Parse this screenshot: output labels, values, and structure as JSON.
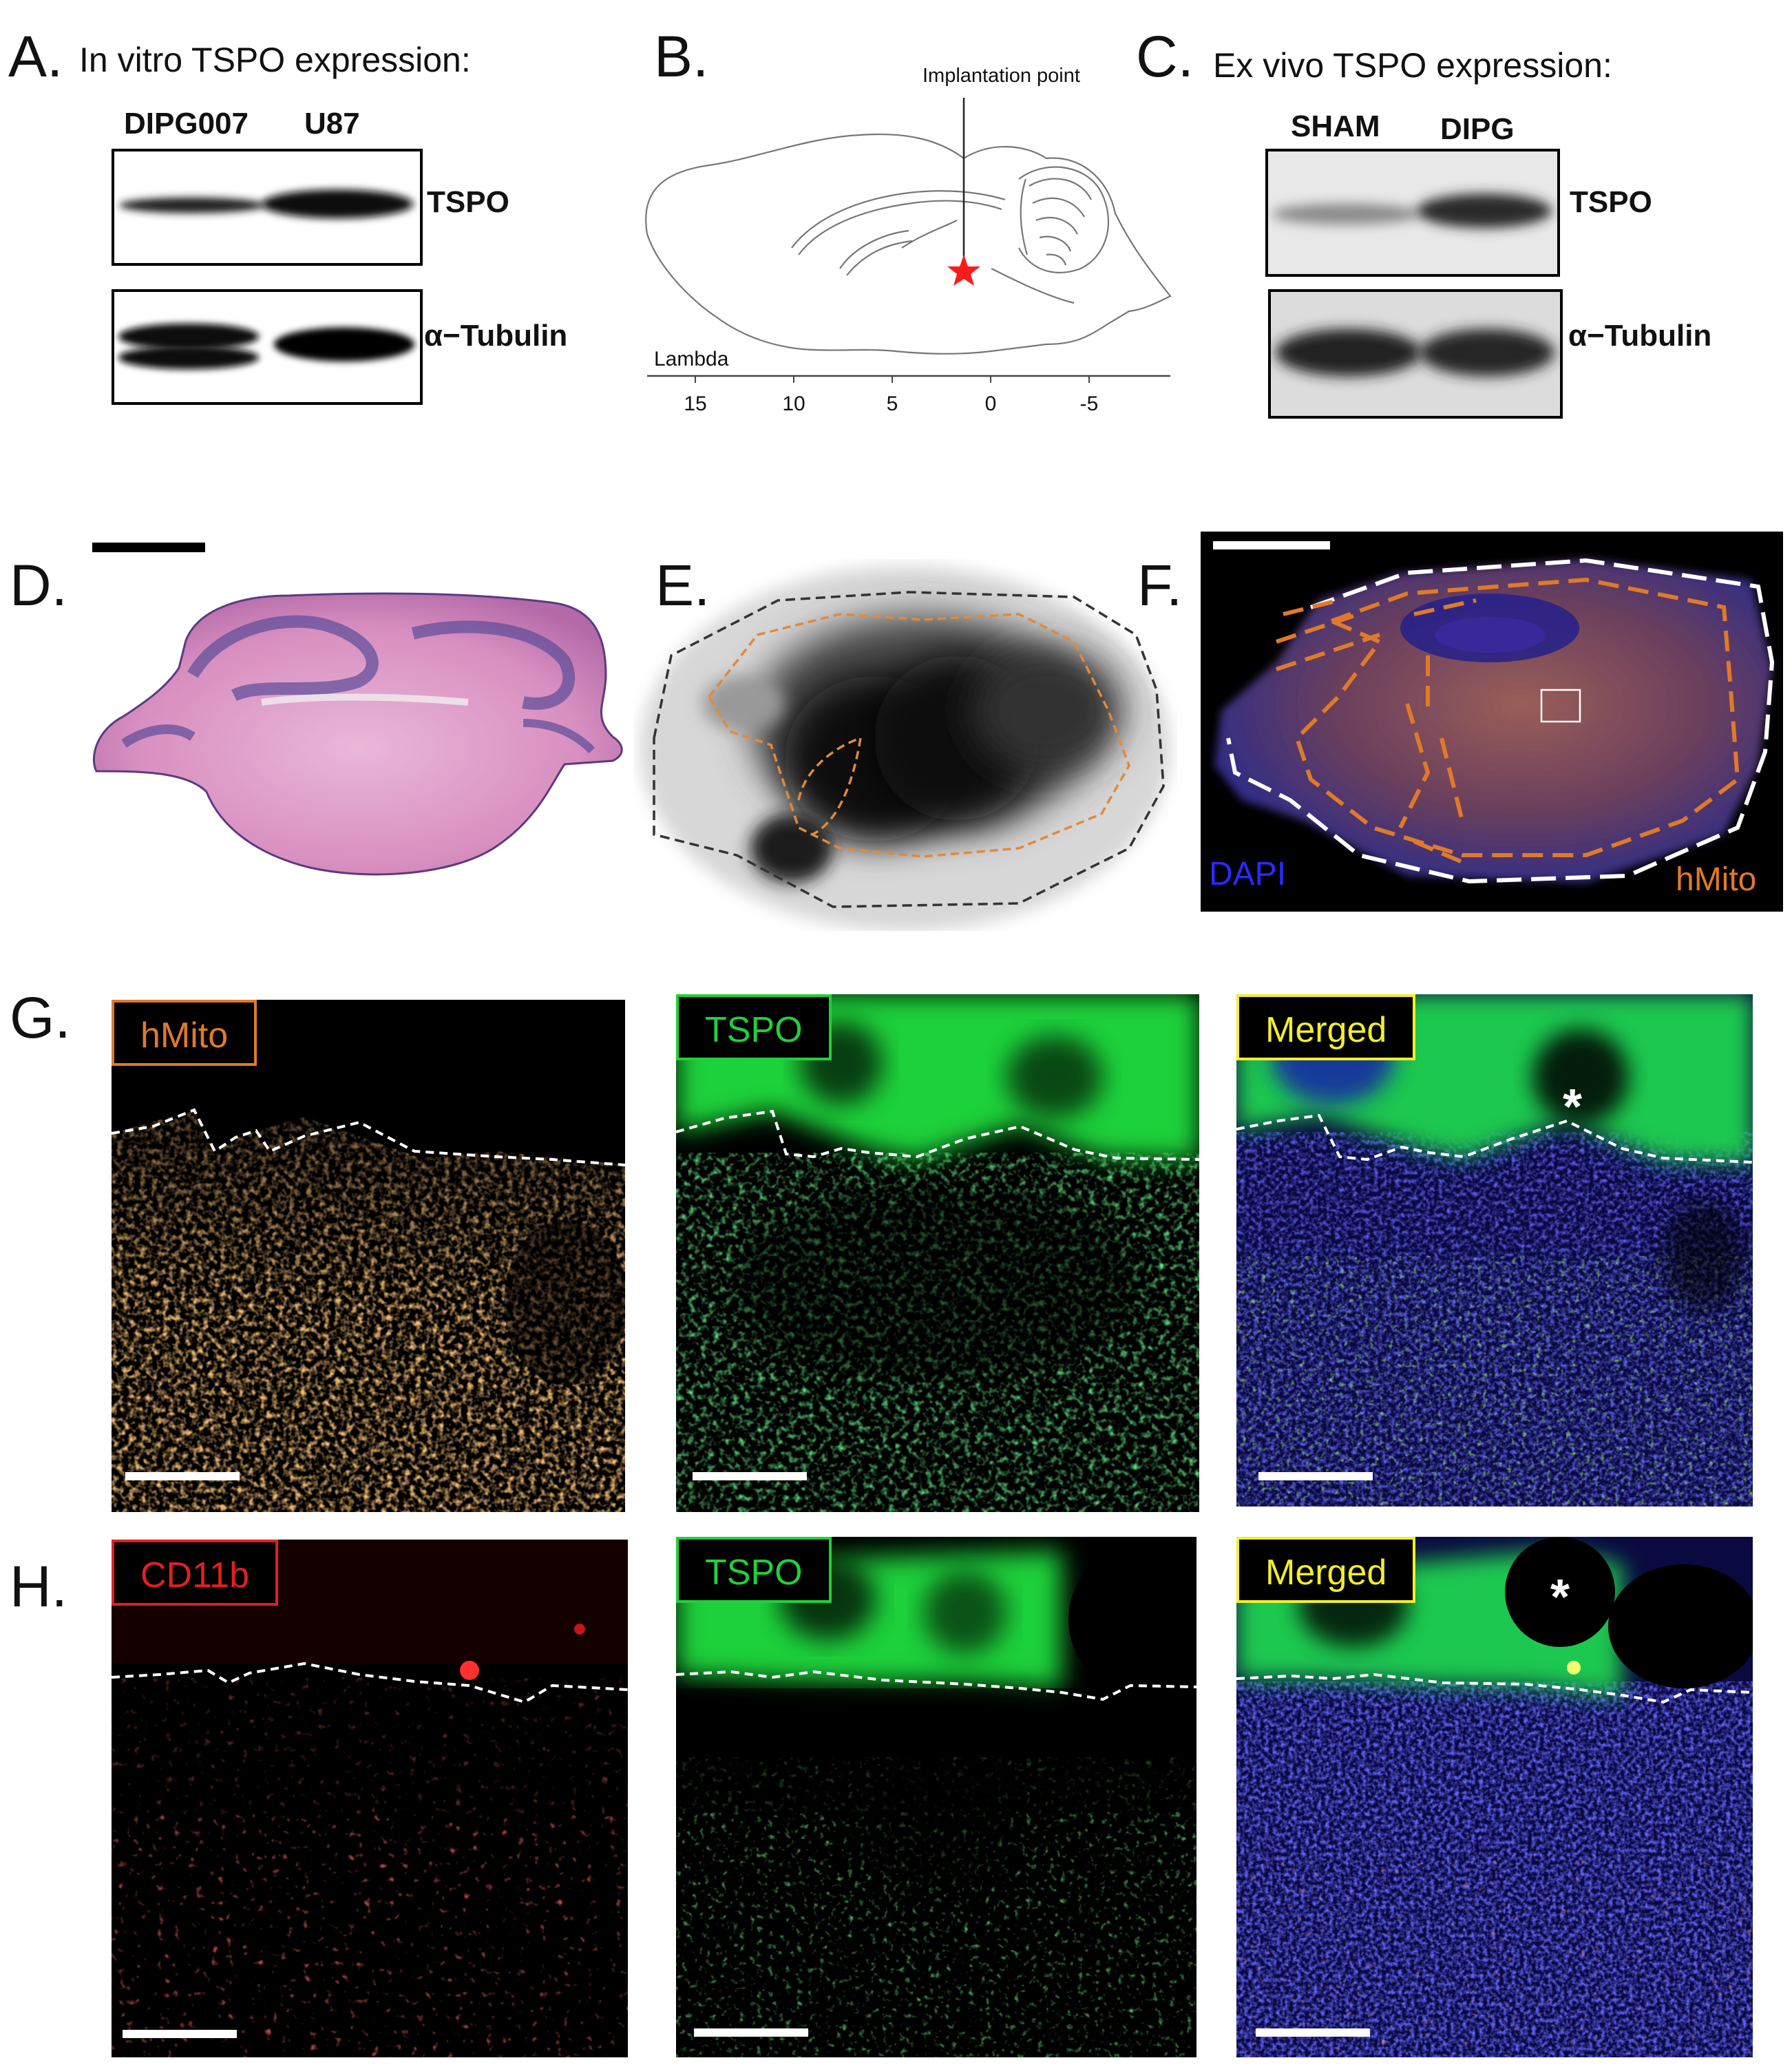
{
  "panels": {
    "A": {
      "letter": "A.",
      "title": "In vitro TSPO expression:",
      "lanes": [
        "DIPG007",
        "U87"
      ],
      "bands": [
        "TSPO",
        "α−Tubulin"
      ]
    },
    "B": {
      "letter": "B.",
      "annotation": "Implantation point",
      "axis_label": "Lambda",
      "ticks": [
        "15",
        "10",
        "5",
        "0",
        "-5"
      ]
    },
    "C": {
      "letter": "C.",
      "title": "Ex vivo TSPO expression:",
      "lanes": [
        "SHAM",
        "DIPG"
      ],
      "bands": [
        "TSPO",
        "α−Tubulin"
      ]
    },
    "D": {
      "letter": "D."
    },
    "E": {
      "letter": "E."
    },
    "F": {
      "letter": "F.",
      "left_label": "DAPI",
      "right_label": "hMito"
    },
    "G": {
      "letter": "G.",
      "channels": [
        "hMito",
        "TSPO",
        "Merged"
      ],
      "asterisk": "*"
    },
    "H": {
      "letter": "H.",
      "channels": [
        "CD11b",
        "TSPO",
        "Merged"
      ],
      "asterisk": "*"
    }
  },
  "colors": {
    "hmito": "#e07a28",
    "tspo": "#1fd13a",
    "merged": "#f2ee2b",
    "cd11b": "#e02020",
    "dapi": "#2a2aff",
    "implant_star": "#ff1a1a"
  }
}
